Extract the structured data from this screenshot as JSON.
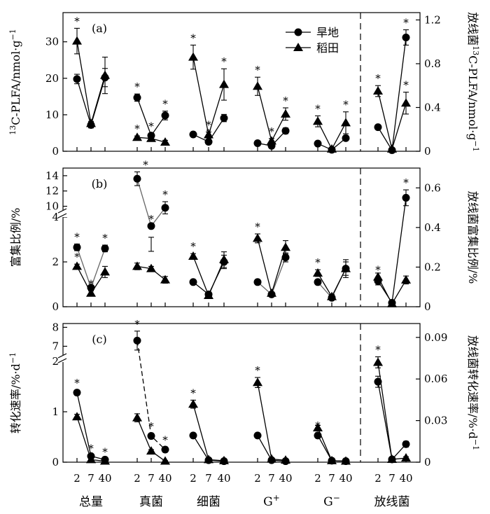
{
  "chart_data": {
    "type": "line",
    "legend": {
      "placement": "top-right",
      "entries": [
        {
          "name": "旱地",
          "marker": "circle"
        },
        {
          "name": "稻田",
          "marker": "triangle"
        }
      ]
    },
    "groups": [
      {
        "label": "总量",
        "sup": "",
        "x": [
          "2",
          "7",
          "40"
        ]
      },
      {
        "label": "真菌",
        "sup": "",
        "x": [
          "2",
          "7",
          "40"
        ]
      },
      {
        "label": "细菌",
        "sup": "",
        "x": [
          "2",
          "7",
          "40"
        ]
      },
      {
        "label": "G",
        "sup": "+",
        "x": [
          "2",
          "7",
          "40"
        ]
      },
      {
        "label": "G",
        "sup": "−",
        "x": [
          "2",
          "7",
          "40"
        ]
      },
      {
        "label": "放线菌",
        "sup": "",
        "x": [
          "2",
          "7",
          "40"
        ]
      }
    ],
    "panels": [
      {
        "label": "(a)",
        "ylabel_left": {
          "sup": "13",
          "text": "C-PLFA/nmol·g"
        },
        "ylabel_left_sup_end": "−1",
        "ylabel_right": {
          "prefix": "放线菌",
          "sup": "13",
          "text": "C-PLFA/nmol·g"
        },
        "ylabel_right_sup_end": "−1",
        "yticks_left": [
          "0",
          "10",
          "20",
          "30"
        ],
        "yticks_right": [
          "0",
          "0.4",
          "0.8",
          "1.2"
        ],
        "ylim_left": [
          0,
          38
        ],
        "ylim_right": [
          0,
          1.267
        ],
        "series": [
          {
            "name": "旱地",
            "values": [
              [
                19.8,
                7.2,
                20.2
              ],
              [
                14.7,
                4.3,
                9.8
              ],
              [
                4.6,
                2.6,
                9.1
              ],
              [
                2.2,
                1.5,
                5.6
              ],
              [
                2.1,
                0.4,
                3.6
              ],
              [
                0.22,
                0.01,
                1.04
              ]
            ],
            "err": [
              [
                1.3,
                0.8,
                2.5
              ],
              [
                1.0,
                0.6,
                1.2
              ],
              [
                0.5,
                0.5,
                1.0
              ],
              [
                0.3,
                0.3,
                0.8
              ],
              [
                0.3,
                0.1,
                0.6
              ],
              [
                0.02,
                0.005,
                0.07
              ]
            ],
            "sig": [
              [
                false,
                false,
                false
              ],
              [
                true,
                true,
                true
              ],
              [
                false,
                true,
                false
              ],
              [
                false,
                false,
                false
              ],
              [
                false,
                false,
                false
              ],
              [
                false,
                false,
                true
              ]
            ]
          },
          {
            "name": "稻田",
            "values": [
              [
                30.2,
                7.6,
                20.8
              ],
              [
                3.8,
                3.5,
                2.5
              ],
              [
                25.8,
                4.5,
                18.3
              ],
              [
                17.8,
                2.8,
                10.2
              ],
              [
                8.2,
                0.6,
                7.8
              ],
              [
                0.55,
                0.02,
                0.44
              ]
            ],
            "err": [
              [
                3.5,
                0.6,
                5.0
              ],
              [
                0.4,
                0.5,
                0.5
              ],
              [
                3.3,
                0.8,
                4.3
              ],
              [
                2.5,
                0.7,
                1.7
              ],
              [
                1.5,
                0.2,
                3.0
              ],
              [
                0.05,
                0.01,
                0.1
              ]
            ],
            "sig": [
              [
                true,
                false,
                false
              ],
              [
                true,
                false,
                false
              ],
              [
                true,
                true,
                true
              ],
              [
                true,
                true,
                true
              ],
              [
                true,
                false,
                true
              ],
              [
                true,
                false,
                true
              ]
            ]
          }
        ]
      },
      {
        "label": "(b)",
        "ylabel_left": {
          "sup": "",
          "text": "富集比例/%"
        },
        "ylabel_left_sup_end": "",
        "ylabel_right": {
          "prefix": "",
          "sup": "",
          "text": "放线菌富集比例/%"
        },
        "ylabel_right_sup_end": "",
        "axis_break": {
          "low": [
            0,
            4
          ],
          "high": [
            9.5,
            15
          ]
        },
        "yticks_left": [
          "0",
          "2",
          "4",
          "10",
          "12",
          "14"
        ],
        "yticks_right": [
          "0",
          "0.2",
          "0.4",
          "0.6"
        ],
        "ylim_right": [
          0,
          0.7
        ],
        "series": [
          {
            "name": "旱地",
            "values": [
              [
                2.65,
                0.85,
                2.6
              ],
              [
                13.6,
                3.6,
                9.8
              ],
              [
                1.1,
                0.55,
                2.0
              ],
              [
                1.1,
                0.55,
                2.2
              ],
              [
                1.1,
                0.4,
                1.7
              ],
              [
                0.13,
                0.02,
                0.55
              ]
            ],
            "err": [
              [
                0.15,
                0.1,
                0.15
              ],
              [
                0.9,
                0.5,
                0.8
              ],
              [
                0.05,
                0.05,
                0.3
              ],
              [
                0.05,
                0.05,
                0.2
              ],
              [
                0.1,
                0.05,
                0.3
              ],
              [
                0.02,
                0.005,
                0.04
              ]
            ],
            "sig": [
              [
                true,
                false,
                true
              ],
              [
                true,
                true,
                true
              ],
              [
                false,
                false,
                false
              ],
              [
                false,
                false,
                false
              ],
              [
                false,
                false,
                false
              ],
              [
                true,
                false,
                true
              ]
            ]
          },
          {
            "name": "稻田",
            "values": [
              [
                1.8,
                0.6,
                1.55
              ],
              [
                1.8,
                1.7,
                1.2
              ],
              [
                2.25,
                0.5,
                2.1
              ],
              [
                3.05,
                0.6,
                2.65
              ],
              [
                1.5,
                0.45,
                1.7
              ],
              [
                0.15,
                0.015,
                0.135
              ]
            ],
            "err": [
              [
                0.1,
                0.1,
                0.25
              ],
              [
                0.15,
                0.1,
                0.15
              ],
              [
                0.12,
                0.05,
                0.35
              ],
              [
                0.2,
                0.05,
                0.3
              ],
              [
                0.15,
                0.1,
                0.4
              ],
              [
                0.02,
                0.005,
                0.02
              ]
            ],
            "sig": [
              [
                true,
                true,
                false
              ],
              [
                false,
                false,
                false
              ],
              [
                true,
                false,
                false
              ],
              [
                true,
                false,
                false
              ],
              [
                true,
                false,
                false
              ],
              [
                false,
                false,
                false
              ]
            ]
          }
        ]
      },
      {
        "label": "(c)",
        "ylabel_left": {
          "sup": "",
          "text": "转化速率/%·d"
        },
        "ylabel_left_sup_end": "−1",
        "ylabel_right": {
          "prefix": "",
          "sup": "",
          "text": "放线菌转化速率/%·d"
        },
        "ylabel_right_sup_end": "−1",
        "axis_break": {
          "low": [
            0,
            2
          ],
          "high": [
            6.5,
            8.2
          ]
        },
        "yticks_left": [
          "0",
          "1",
          "2",
          "7",
          "8"
        ],
        "yticks_right": [
          "0",
          "0.03",
          "0.06",
          "0.09"
        ],
        "ylim_right": [
          0,
          0.1
        ],
        "series": [
          {
            "name": "旱地",
            "values": [
              [
                1.38,
                0.12,
                0.05
              ],
              [
                7.3,
                0.52,
                0.25
              ],
              [
                0.53,
                0.04,
                0.02
              ],
              [
                0.53,
                0.04,
                0.02
              ],
              [
                0.53,
                0.03,
                0.02
              ],
              [
                0.058,
                0.002,
                0.013
              ]
            ],
            "err": [
              [
                0.05,
                0.01,
                0.01
              ],
              [
                0.5,
                0.05,
                0.05
              ],
              [
                0.02,
                0.01,
                0.01
              ],
              [
                0.02,
                0.01,
                0.01
              ],
              [
                0.05,
                0.01,
                0.01
              ],
              [
                0.004,
                0.001,
                0.002
              ]
            ],
            "sig": [
              [
                true,
                true,
                true
              ],
              [
                true,
                true,
                true
              ],
              [
                false,
                false,
                false
              ],
              [
                false,
                false,
                false
              ],
              [
                true,
                false,
                false
              ],
              [
                false,
                false,
                false
              ]
            ]
          },
          {
            "name": "稻田",
            "values": [
              [
                0.9,
                0.05,
                0.02
              ],
              [
                0.88,
                0.22,
                0.02
              ],
              [
                1.15,
                0.05,
                0.03
              ],
              [
                1.58,
                0.06,
                0.04
              ],
              [
                0.68,
                0.03,
                0.02
              ],
              [
                0.072,
                0.002,
                0.003
              ]
            ],
            "err": [
              [
                0.05,
                0.01,
                0.01
              ],
              [
                0.08,
                0.03,
                0.01
              ],
              [
                0.08,
                0.01,
                0.01
              ],
              [
                0.1,
                0.01,
                0.01
              ],
              [
                0.05,
                0.01,
                0.01
              ],
              [
                0.004,
                0.001,
                0.001
              ]
            ],
            "sig": [
              [
                false,
                false,
                false
              ],
              [
                false,
                false,
                false
              ],
              [
                true,
                false,
                false
              ],
              [
                true,
                false,
                false
              ],
              [
                false,
                false,
                false
              ],
              [
                true,
                false,
                false
              ]
            ]
          }
        ]
      }
    ]
  }
}
